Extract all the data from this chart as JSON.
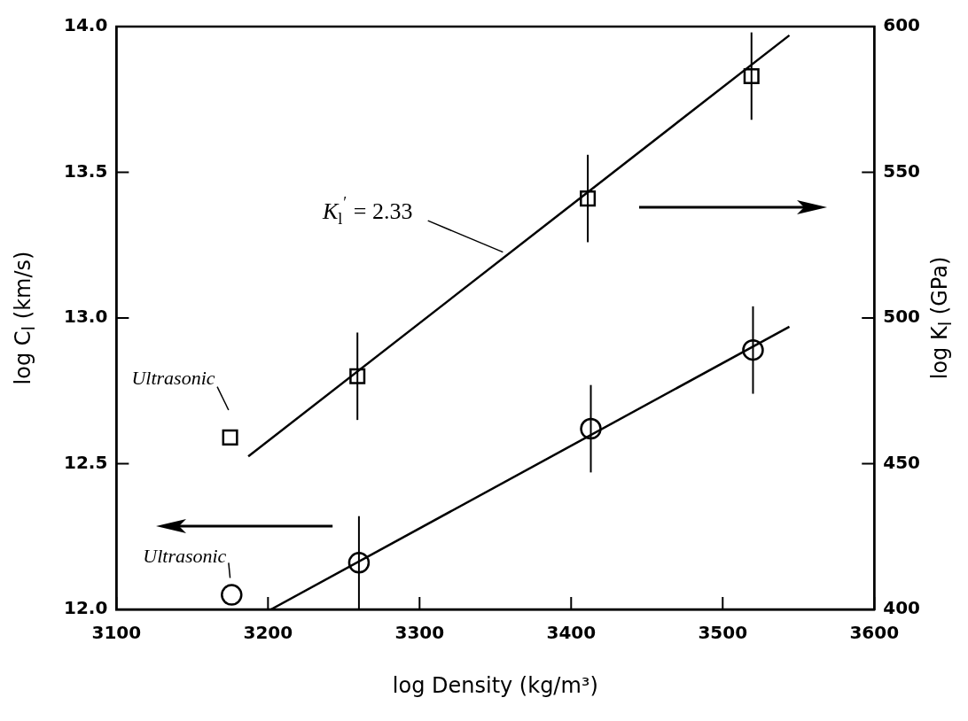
{
  "chart_data": {
    "type": "scatter",
    "xlabel": "log Density (kg/m³)",
    "ylabel": "log C$_{l}$ (km/s)",
    "y2label": "log K$_{l}$ (GPa)",
    "xlim": [
      3100,
      3600
    ],
    "xticks": [
      3100,
      3200,
      3300,
      3400,
      3500,
      3600
    ],
    "ylim": [
      12,
      14
    ],
    "yticks": [
      {
        "value": 12,
        "label": "12.0"
      },
      12.5,
      {
        "value": 13,
        "label": "13.0"
      },
      13.5,
      {
        "value": 14,
        "label": "14.0"
      }
    ],
    "y2lim": [
      400,
      600
    ],
    "y2ticks": [
      400,
      450,
      500,
      550,
      600
    ],
    "series": [
      {
        "type": "scatter",
        "color": "#000000",
        "marker": "circle",
        "x": [
          3176,
          3260,
          3413,
          3520
        ],
        "values": [
          12.05,
          12.16,
          12.62,
          12.89
        ],
        "errors": [
          null,
          0.16,
          0.15,
          0.15
        ]
      },
      {
        "type": "scatter",
        "axis": "y2",
        "color": "#000000",
        "marker": "square",
        "x": [
          3175,
          3259,
          3411,
          3519
        ],
        "values": [
          459,
          480,
          541,
          583
        ],
        "errors": [
          null,
          15,
          15,
          15
        ]
      },
      {
        "type": "line",
        "color": "#000000",
        "marker": "none",
        "x": [
          3202,
          3544
        ],
        "values": [
          12.0,
          12.97
        ]
      },
      {
        "type": "line",
        "axis": "y2",
        "color": "#000000",
        "marker": "none",
        "x": [
          3187,
          3544
        ],
        "values": [
          452.5,
          597
        ]
      }
    ],
    "annotations": [
      "K$_{l}$$^{′}$ = 2.33",
      "Ultrasonic",
      "Ultrasonic"
    ]
  }
}
